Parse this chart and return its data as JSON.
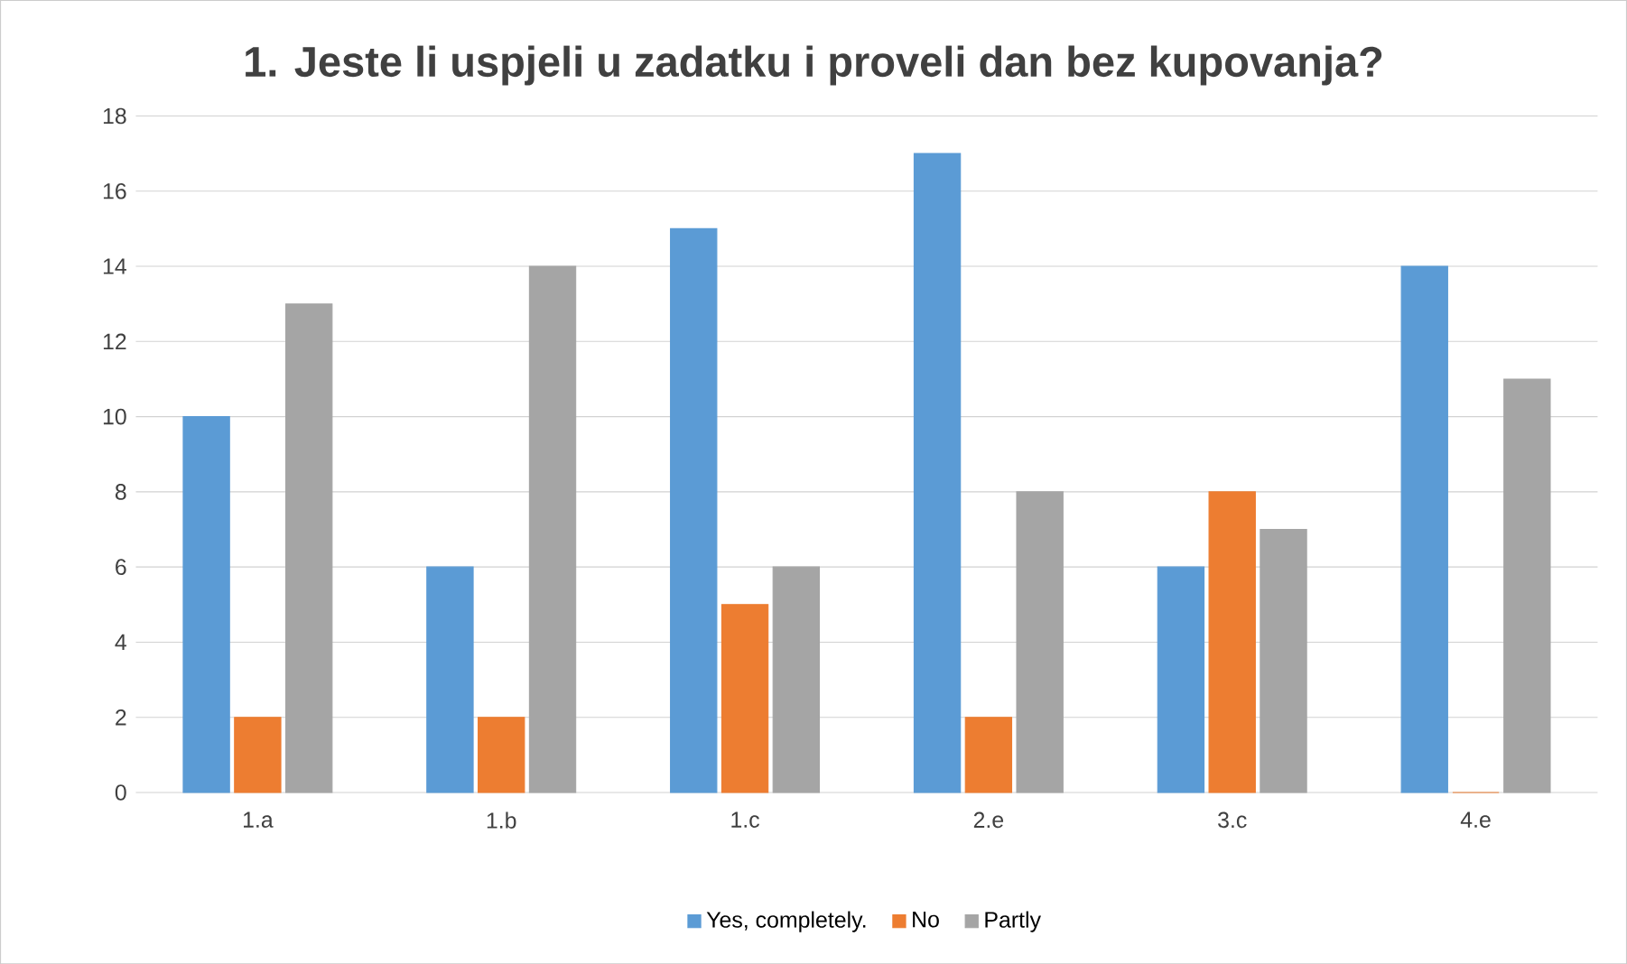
{
  "chart_data": {
    "type": "bar",
    "title": "1. Jeste li uspjeli u zadatku i proveli dan bez kupovanja?",
    "categories": [
      "1.a",
      "1.b",
      "1.c",
      "2.e",
      "3.c",
      "4.e"
    ],
    "series": [
      {
        "name": "Yes, completely.",
        "color": "#5b9bd5",
        "values": [
          10,
          6,
          15,
          17,
          6,
          14
        ]
      },
      {
        "name": "No",
        "color": "#ed7d31",
        "values": [
          2,
          2,
          5,
          2,
          8,
          0
        ]
      },
      {
        "name": "Partly",
        "color": "#a5a5a5",
        "values": [
          13,
          14,
          6,
          8,
          7,
          11
        ]
      }
    ],
    "ylim": [
      0,
      18
    ],
    "yticks": [
      0,
      2,
      4,
      6,
      8,
      10,
      12,
      14,
      16,
      18
    ],
    "grid": "y",
    "legend": "bottom"
  }
}
